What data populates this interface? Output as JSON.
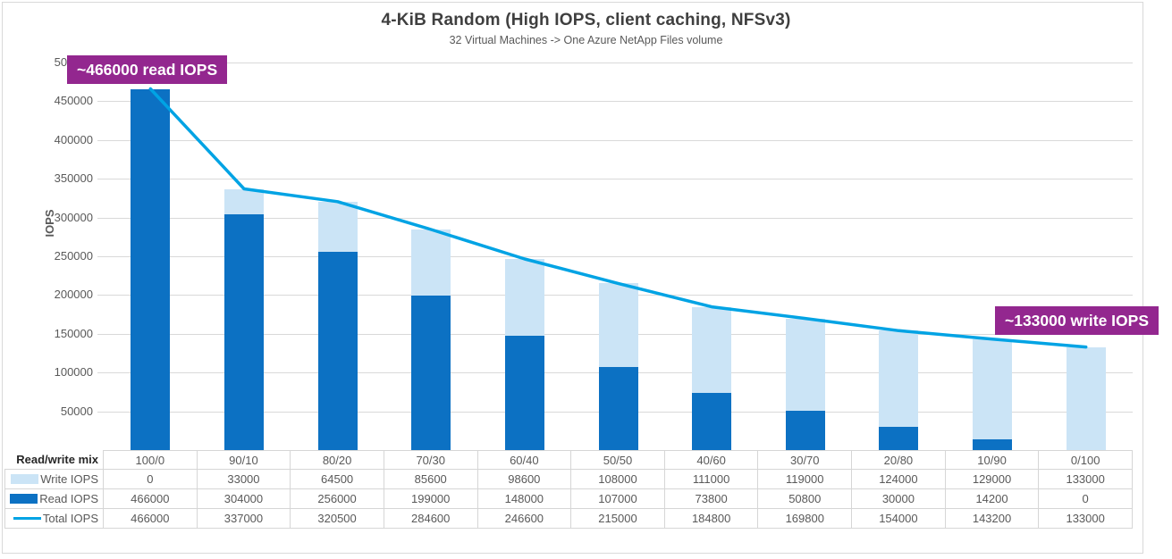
{
  "title": "4-KiB Random (High IOPS, client caching, NFSv3)",
  "subtitle": "32 Virtual Machines -> One Azure NetApp Files volume",
  "annotations": {
    "read_peak": "~466000 read IOPS",
    "write_peak": "~133000 write IOPS"
  },
  "colors": {
    "read_bar": "#0c71c3",
    "write_bar": "#cbe4f6",
    "total_line": "#00a3e4",
    "annotation_bg": "#93278f",
    "grid": "#d9d9d9",
    "text": "#595959"
  },
  "table": {
    "row_headers": [
      "Read/write mix",
      "Write IOPS",
      "Read IOPS",
      "Total IOPS"
    ]
  },
  "chart_data": {
    "type": "bar",
    "subtype": "stacked-bars-with-line-overlay",
    "title": "4-KiB Random (High IOPS, client caching, NFSv3)",
    "subtitle": "32 Virtual Machines -> One Azure NetApp Files volume",
    "categories": [
      "100/0",
      "90/10",
      "80/20",
      "70/30",
      "60/40",
      "50/50",
      "40/60",
      "30/70",
      "20/80",
      "10/90",
      "0/100"
    ],
    "series": [
      {
        "name": "Write IOPS",
        "type": "bar",
        "stack": true,
        "values": [
          0,
          33000,
          64500,
          85600,
          98600,
          108000,
          111000,
          119000,
          124000,
          129000,
          133000
        ]
      },
      {
        "name": "Read IOPS",
        "type": "bar",
        "stack": true,
        "values": [
          466000,
          304000,
          256000,
          199000,
          148000,
          107000,
          73800,
          50800,
          30000,
          14200,
          0
        ]
      },
      {
        "name": "Total IOPS",
        "type": "line",
        "values": [
          466000,
          337000,
          320500,
          284600,
          246600,
          215000,
          184800,
          169800,
          154000,
          143200,
          133000
        ]
      }
    ],
    "xlabel": "Read/write mix",
    "ylabel": "IOPS",
    "ylim": [
      0,
      500000
    ],
    "ytick_interval": 50000,
    "grid": true,
    "legend_position": "data-table-left-column"
  }
}
